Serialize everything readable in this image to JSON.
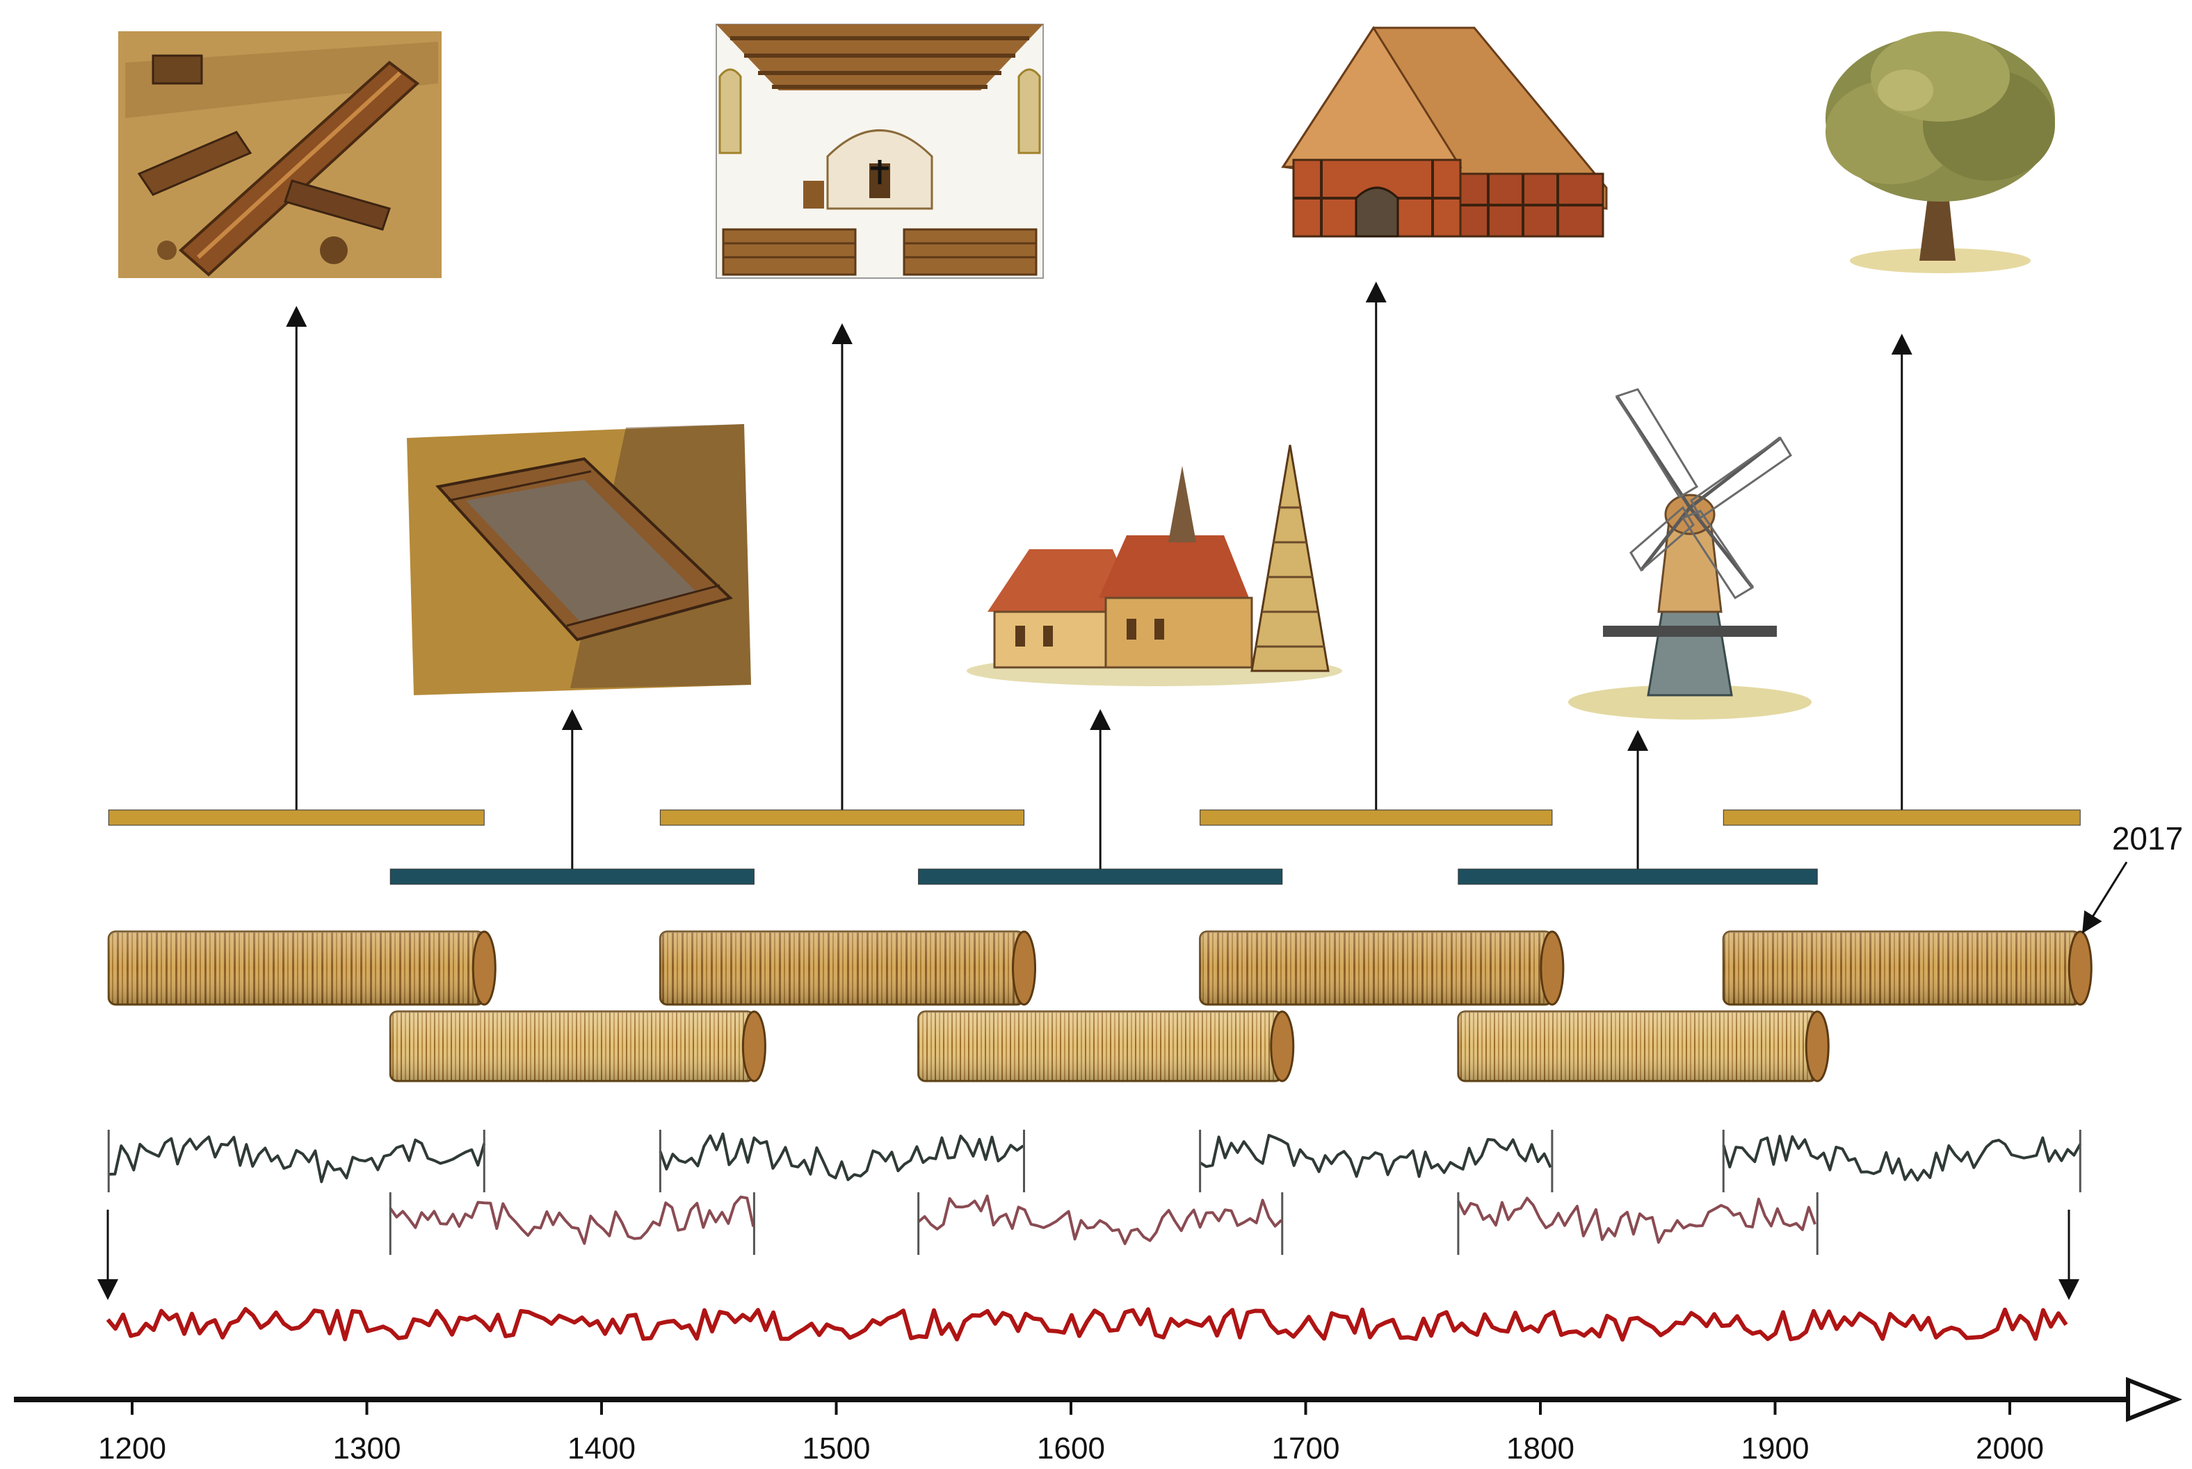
{
  "timeline": {
    "ticks": [
      {
        "year": 1200,
        "label": "1200"
      },
      {
        "year": 1300,
        "label": "1300"
      },
      {
        "year": 1400,
        "label": "1400"
      },
      {
        "year": 1500,
        "label": "1500"
      },
      {
        "year": 1600,
        "label": "1600"
      },
      {
        "year": 1700,
        "label": "1700"
      },
      {
        "year": 1800,
        "label": "1800"
      },
      {
        "year": 1900,
        "label": "1900"
      },
      {
        "year": 2000,
        "label": "2000"
      }
    ],
    "end_year_label": "2017"
  },
  "wood_sources": [
    {
      "name": "archaeological-timber",
      "row": "upper",
      "color": "#c79a34",
      "start": 1190,
      "end": 1350
    },
    {
      "name": "log-well",
      "row": "lower",
      "color": "#1e4f5f",
      "start": 1310,
      "end": 1465
    },
    {
      "name": "church-interior",
      "row": "upper",
      "color": "#c79a34",
      "start": 1425,
      "end": 1580
    },
    {
      "name": "church-and-bell-tower",
      "row": "lower",
      "color": "#1e4f5f",
      "start": 1535,
      "end": 1690
    },
    {
      "name": "half-timbered-barn",
      "row": "upper",
      "color": "#c79a34",
      "start": 1655,
      "end": 1805
    },
    {
      "name": "windmill",
      "row": "lower",
      "color": "#1e4f5f",
      "start": 1765,
      "end": 1918
    },
    {
      "name": "living-oak-tree",
      "row": "upper",
      "color": "#c79a34",
      "start": 1878,
      "end": 2030
    }
  ],
  "colors": {
    "upper_bar": "#c79a34",
    "lower_bar": "#1e4f5f",
    "master_chronology": "#b01414",
    "series_dark": "#2f3a36",
    "series_red": "#8a4b52",
    "wood_light": "#d8b56a",
    "wood_dark": "#8a5a22"
  }
}
